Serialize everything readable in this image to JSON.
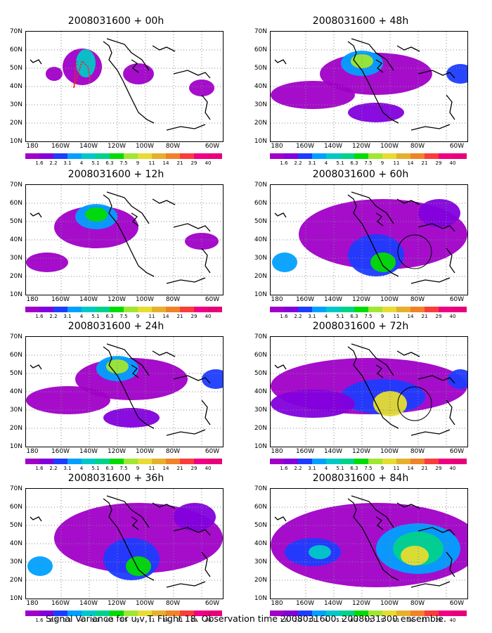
{
  "panels": [
    {
      "title": "2008031600 + 00h",
      "level": 0,
      "circle": false
    },
    {
      "title": "2008031600 + 12h",
      "level": 1,
      "circle": false
    },
    {
      "title": "2008031600 + 24h",
      "level": 2,
      "circle": false
    },
    {
      "title": "2008031600 + 36h",
      "level": 3,
      "circle": false
    },
    {
      "title": "2008031600 + 48h",
      "level": 2,
      "circle": false
    },
    {
      "title": "2008031600 + 60h",
      "level": 3,
      "circle": true
    },
    {
      "title": "2008031600 + 72h",
      "level": 4,
      "circle": true
    },
    {
      "title": "2008031600 + 84h",
      "level": 5,
      "circle": false
    }
  ],
  "lat_ticks": [
    "70N",
    "60N",
    "50N",
    "40N",
    "30N",
    "20N",
    "10N"
  ],
  "lon_ticks": [
    "180",
    "160W",
    "140W",
    "120W",
    "100W",
    "80W",
    "60W"
  ],
  "colorbar": {
    "labels": [
      "1.6",
      "2.2",
      "3.1",
      "4",
      "5.1",
      "6.3",
      "7.5",
      "9",
      "11",
      "14",
      "21",
      "29",
      "40"
    ],
    "colors": [
      "#a000c8",
      "#8200dc",
      "#1e3cff",
      "#00a0ff",
      "#00c8c8",
      "#00d28c",
      "#00dc00",
      "#a0e632",
      "#e6dc32",
      "#e6af2d",
      "#f08228",
      "#fa3c3c",
      "#f00082"
    ]
  },
  "caption": "Signal Variance for u,v,T. Flight 18. Observation time 2008031600. 2008031300 ensemble."
}
